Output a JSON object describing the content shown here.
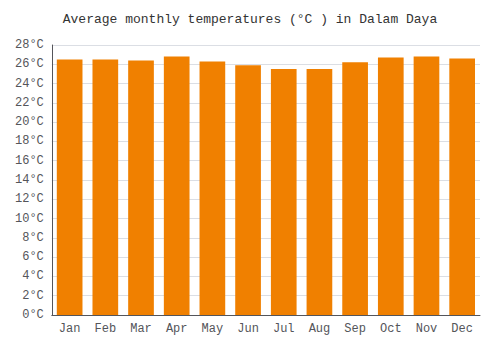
{
  "chart_data": {
    "type": "bar",
    "title": "Average monthly temperatures (°C ) in Dalam Daya",
    "categories": [
      "Jan",
      "Feb",
      "Mar",
      "Apr",
      "May",
      "Jun",
      "Jul",
      "Aug",
      "Sep",
      "Oct",
      "Nov",
      "Dec"
    ],
    "values": [
      26.5,
      26.5,
      26.4,
      26.8,
      26.3,
      25.9,
      25.5,
      25.5,
      26.2,
      26.7,
      26.8,
      26.6
    ],
    "color": "#F08000",
    "ylim": [
      0,
      28
    ],
    "yticks": [
      {
        "value": 0,
        "label": "0°C"
      },
      {
        "value": 2,
        "label": "2°C"
      },
      {
        "value": 4,
        "label": "4°C"
      },
      {
        "value": 6,
        "label": "6°C"
      },
      {
        "value": 8,
        "label": "8°C"
      },
      {
        "value": 10,
        "label": "10°C"
      },
      {
        "value": 12,
        "label": "12°C"
      },
      {
        "value": 14,
        "label": "14°C"
      },
      {
        "value": 16,
        "label": "16°C"
      },
      {
        "value": 18,
        "label": "18°C"
      },
      {
        "value": 20,
        "label": "20°C"
      },
      {
        "value": 22,
        "label": "22°C"
      },
      {
        "value": 24,
        "label": "24°C"
      },
      {
        "value": 26,
        "label": "26°C"
      },
      {
        "value": 28,
        "label": "28°C"
      }
    ],
    "grid": true
  }
}
